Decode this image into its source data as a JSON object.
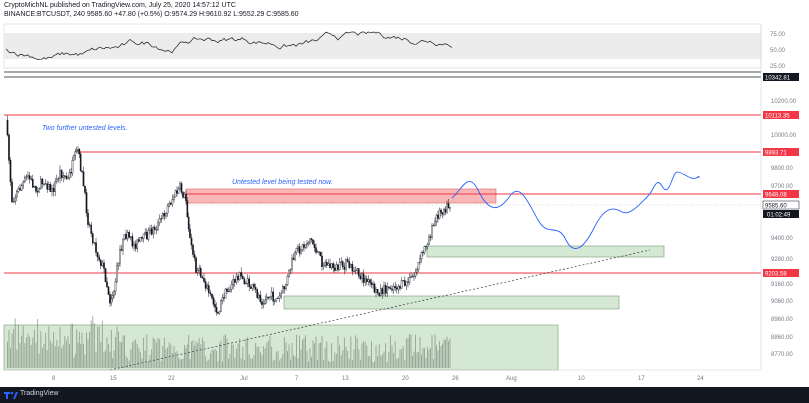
{
  "header": {
    "publisher": "CryptoMichNL published on TradingView.com, July 25, 2020 14:57:12 UTC",
    "symbol_line": "BINANCE:BTCUSDT, 240  9585.60  +47.80 (+0.5%)  O:9574.29  H:9610.92  L:9552.29  C:9585.60"
  },
  "footer": {
    "brand": "TradingView"
  },
  "colors": {
    "candle": "#131722",
    "level_line": "#f23645",
    "supply_zone": "#f7b7b7",
    "demand_zone": "#d5e8d4",
    "projection": "#2962ff",
    "annotation": "#2962ff",
    "rsi_line": "#131722"
  },
  "chart_data": [
    {
      "type": "line",
      "name": "rsi_pane",
      "ylim": [
        25,
        80
      ],
      "ticks": [
        "75.00",
        "50.00",
        "25.00"
      ],
      "band": [
        30,
        70
      ]
    },
    {
      "type": "candlestick",
      "name": "price_pane",
      "ylim": [
        8700,
        10460
      ],
      "price_axis_labels": [
        "10200.00",
        "10000.00",
        "9800.00",
        "9700.00",
        "9400.00",
        "9280.00",
        "9160.00",
        "9060.00",
        "8960.00",
        "8860.00",
        "8770.00"
      ],
      "time_axis_labels": [
        "8",
        "15",
        "22",
        "Jul",
        "7",
        "13",
        "20",
        "26",
        "Aug",
        "10",
        "17",
        "24"
      ],
      "highlighted_prices": [
        {
          "label": "10342.81"
        },
        {
          "label": "10113.35"
        },
        {
          "label": "9893.71"
        },
        {
          "label": "9648.08"
        },
        {
          "label": "9585.60"
        },
        {
          "label": "01:02:49"
        },
        {
          "label": "9203.58"
        }
      ],
      "horizontal_levels": [
        10342.81,
        10113.35,
        9893.71,
        9648.08,
        9203.58
      ],
      "annotations": [
        {
          "text": "Two further untested levels."
        },
        {
          "text": "Untested level being tested now."
        }
      ],
      "zones": [
        {
          "kind": "supply",
          "from": 9600,
          "to": 9680
        },
        {
          "kind": "demand",
          "from": 9290,
          "to": 9340
        },
        {
          "kind": "demand",
          "from": 9030,
          "to": 9090
        },
        {
          "kind": "demand",
          "from": 8700,
          "to": 8930
        }
      ],
      "last_price": 9585.6
    }
  ]
}
